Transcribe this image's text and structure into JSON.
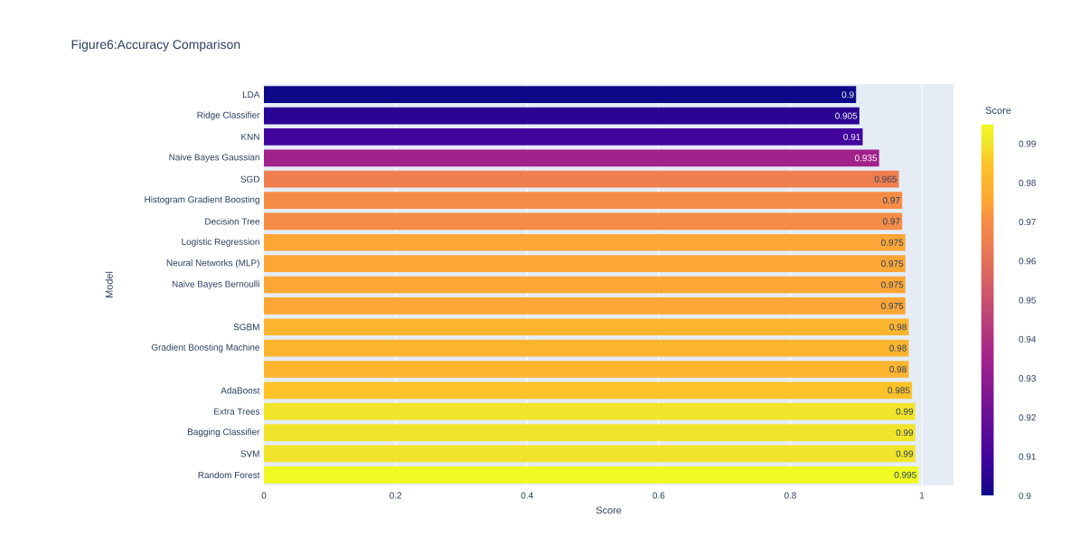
{
  "chart_data": {
    "type": "bar",
    "orientation": "horizontal",
    "title": "Figure6:Accuracy Comparison",
    "xlabel": "Score",
    "ylabel": "Model",
    "clabel": "Score",
    "categories": [
      "LDA",
      "Ridge Classifier",
      "KNN",
      "Naive Bayes Gaussian",
      "SGD",
      "Histogram Gradient Boosting",
      "Decision Tree",
      "Logistic Regression",
      "Neural Networks (MLP)",
      "Naive Bayes Bernoulli",
      null,
      "SGBM",
      "Gradient Boosting Machine",
      null,
      "AdaBoost",
      "Extra Trees",
      "Bagging Classifier",
      "SVM",
      "Random Forest"
    ],
    "values": [
      0.9,
      0.905,
      0.91,
      0.935,
      0.965,
      0.97,
      0.97,
      0.975,
      0.975,
      0.975,
      0.975,
      0.98,
      0.98,
      0.98,
      0.985,
      0.99,
      0.99,
      0.99,
      0.995
    ],
    "colors": [
      "#0d0887",
      "#2a0593",
      "#41049d",
      "#a2228c",
      "#ef7f4f",
      "#f58c46",
      "#f58c46",
      "#fca636",
      "#fca636",
      "#fca636",
      "#fca636",
      "#fdb42f",
      "#fdb42f",
      "#fdb42f",
      "#fcc228",
      "#f2e42a",
      "#f2e42a",
      "#f2e42a",
      "#f0f921"
    ],
    "data_labels": true,
    "xlim": [
      0,
      1.048
    ],
    "xticks": [
      0,
      0.2,
      0.4,
      0.6,
      0.8,
      1
    ],
    "grid": "x",
    "clim": [
      0.9,
      0.995
    ],
    "cticks": [
      0.9,
      0.91,
      0.92,
      0.93,
      0.94,
      0.95,
      0.96,
      0.97,
      0.98,
      0.99
    ]
  }
}
